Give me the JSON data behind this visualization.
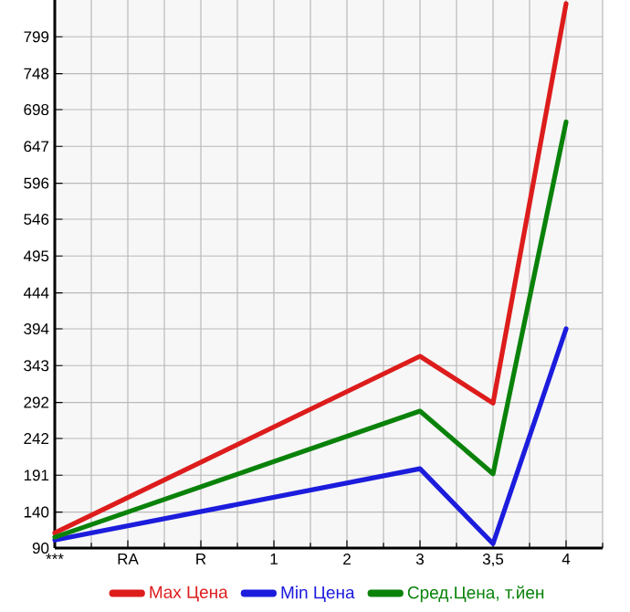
{
  "chart_data": {
    "type": "line",
    "categories": [
      "***",
      "RA",
      "R",
      "1",
      "2",
      "3",
      "3,5",
      "4"
    ],
    "series": [
      {
        "name": "Max Цена",
        "color": "#dd1c1c",
        "values": [
          111,
          null,
          null,
          null,
          null,
          356,
          291,
          845
        ]
      },
      {
        "name": "Min Цена",
        "color": "#1c1cdd",
        "values": [
          101,
          null,
          null,
          null,
          null,
          200,
          96,
          394
        ]
      },
      {
        "name": "Сред.Цена, т.йен",
        "color": "#0a820a",
        "values": [
          105,
          null,
          null,
          null,
          null,
          280,
          193,
          681
        ]
      }
    ],
    "ylim": [
      90,
      850
    ],
    "yticks": [
      90,
      140,
      191,
      242,
      292,
      343,
      394,
      444,
      495,
      546,
      596,
      647,
      698,
      748,
      799
    ],
    "grid": true,
    "legend": "bottom",
    "marker": "none",
    "line_style": "solid"
  }
}
